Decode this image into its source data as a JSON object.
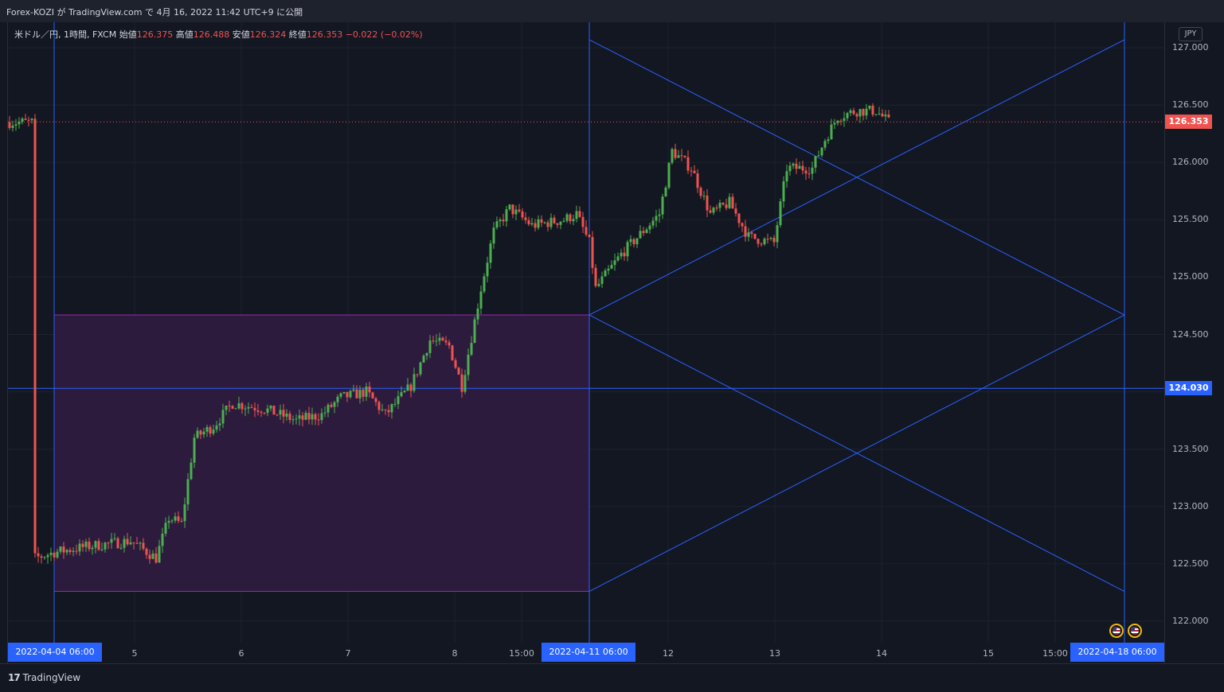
{
  "header": {
    "title": "Forex-KOZI が TradingView.com で 4月 16, 2022 11:42 UTC+9 に公開"
  },
  "legend": {
    "symbol": "米ドル／円, 1時間, FXCM",
    "open_label": "始値",
    "open": "126.375",
    "high_label": "高値",
    "high": "126.488",
    "low_label": "安値",
    "low": "126.324",
    "close_label": "終値",
    "close": "126.353",
    "change": "−0.022 (−0.02%)"
  },
  "currency": "JPY",
  "footer": {
    "brand": "TradingView"
  },
  "colors": {
    "up": "#26a69a",
    "up_candle": "#4caf50",
    "down": "#ef5350",
    "line": "#2962ff",
    "box_fill": "#2d1b3f",
    "box_stroke": "#9c27b0",
    "grid": "#1e222d"
  },
  "chart_data": {
    "type": "candlestick",
    "symbol": "USDJPY",
    "interval": "1H",
    "ylim": [
      121.9,
      127.3
    ],
    "y_ticks": [
      "122.000",
      "122.500",
      "123.000",
      "123.500",
      "124.000",
      "124.500",
      "125.000",
      "125.500",
      "126.000",
      "126.500",
      "127.000"
    ],
    "x_labels": [
      {
        "label": "2022-04-04  06:00",
        "highlight": true
      },
      {
        "label": "5"
      },
      {
        "label": "6"
      },
      {
        "label": "7"
      },
      {
        "label": "8"
      },
      {
        "label": "15:00"
      },
      {
        "label": "2022-04-11  06:00",
        "highlight": true
      },
      {
        "label": "12"
      },
      {
        "label": "13"
      },
      {
        "label": "14"
      },
      {
        "label": "15"
      },
      {
        "label": "15:00"
      },
      {
        "label": "2022-04-18  06:00",
        "highlight": true
      }
    ],
    "current_price": "126.353",
    "horizontal_line": "124.030",
    "drawings": {
      "range_box": {
        "from": "2022-04-04 06:00",
        "to": "2022-04-11 06:00",
        "high": 124.67,
        "low": 122.26
      },
      "projection_box": {
        "from": "2022-04-11 06:00",
        "to": "2022-04-18 06:00",
        "high": 127.07,
        "low": 122.26,
        "mid": 124.67
      }
    },
    "anchors": [
      {
        "t": -6,
        "p": 122.55
      },
      {
        "t": 0,
        "p": 122.6
      },
      {
        "t": 10,
        "p": 122.65
      },
      {
        "t": 24,
        "p": 122.7
      },
      {
        "t": 32,
        "p": 122.55
      },
      {
        "t": 36,
        "p": 122.9
      },
      {
        "t": 40,
        "p": 122.85
      },
      {
        "t": 44,
        "p": 123.6
      },
      {
        "t": 50,
        "p": 123.7
      },
      {
        "t": 56,
        "p": 123.9
      },
      {
        "t": 66,
        "p": 123.85
      },
      {
        "t": 76,
        "p": 123.75
      },
      {
        "t": 84,
        "p": 123.8
      },
      {
        "t": 90,
        "p": 123.95
      },
      {
        "t": 98,
        "p": 124.0
      },
      {
        "t": 104,
        "p": 123.8
      },
      {
        "t": 112,
        "p": 124.05
      },
      {
        "t": 118,
        "p": 124.45
      },
      {
        "t": 124,
        "p": 124.4
      },
      {
        "t": 128,
        "p": 124.05
      },
      {
        "t": 134,
        "p": 124.9
      },
      {
        "t": 138,
        "p": 125.4
      },
      {
        "t": 143,
        "p": 125.6
      },
      {
        "t": 150,
        "p": 125.45
      },
      {
        "t": 160,
        "p": 125.5
      },
      {
        "t": 164,
        "p": 125.55
      },
      {
        "t": 168,
        "p": 125.3
      },
      {
        "t": 170,
        "p": 124.9
      },
      {
        "t": 178,
        "p": 125.2
      },
      {
        "t": 190,
        "p": 125.55
      },
      {
        "t": 194,
        "p": 126.1
      },
      {
        "t": 200,
        "p": 125.95
      },
      {
        "t": 206,
        "p": 125.55
      },
      {
        "t": 212,
        "p": 125.65
      },
      {
        "t": 218,
        "p": 125.35
      },
      {
        "t": 226,
        "p": 125.3
      },
      {
        "t": 230,
        "p": 125.95
      },
      {
        "t": 238,
        "p": 125.95
      },
      {
        "t": 242,
        "p": 126.2
      },
      {
        "t": 246,
        "p": 126.4
      },
      {
        "t": 252,
        "p": 126.45
      },
      {
        "t": 258,
        "p": 126.45
      },
      {
        "t": 262,
        "p": 126.35
      }
    ]
  }
}
